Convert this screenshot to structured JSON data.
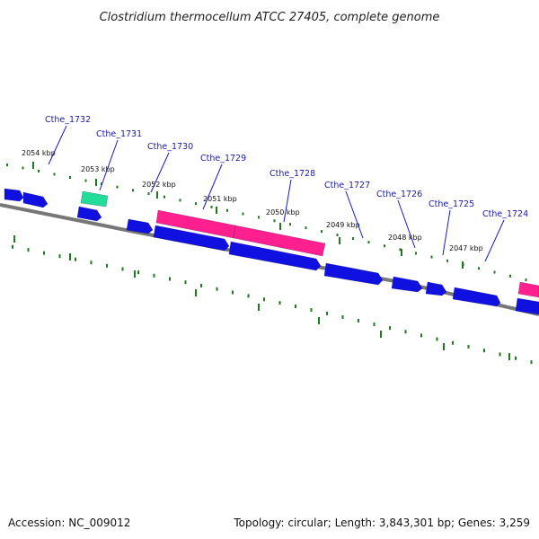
{
  "title": "Clostridium thermocellum ATCC 27405, complete genome",
  "accession": "Accession: NC_009012",
  "summary": "Topology: circular; Length: 3,843,301 bp; Genes: 3,259",
  "colors": {
    "backbone": "#777777",
    "dots": "#1f7a1f",
    "gene_forward": "#1010e0",
    "gene_reverse": "#1010e0",
    "gene_highlight": "#ff1f8f",
    "gene_rna": "#22dd99",
    "label": "#1a1aaa"
  },
  "ticks": [
    {
      "label": "2054 kbp"
    },
    {
      "label": "2053 kbp"
    },
    {
      "label": "2052 kbp"
    },
    {
      "label": "2051 kbp"
    },
    {
      "label": "2050 kbp"
    },
    {
      "label": "2049 kbp"
    },
    {
      "label": "2048 kbp"
    },
    {
      "label": "2047 kbp"
    }
  ],
  "gene_labels": [
    {
      "label": "Cthe_1732"
    },
    {
      "label": "Cthe_1731"
    },
    {
      "label": "Cthe_1730"
    },
    {
      "label": "Cthe_1729"
    },
    {
      "label": "Cthe_1728"
    },
    {
      "label": "Cthe_1727"
    },
    {
      "label": "Cthe_1726"
    },
    {
      "label": "Cthe_1725"
    },
    {
      "label": "Cthe_1724"
    }
  ]
}
